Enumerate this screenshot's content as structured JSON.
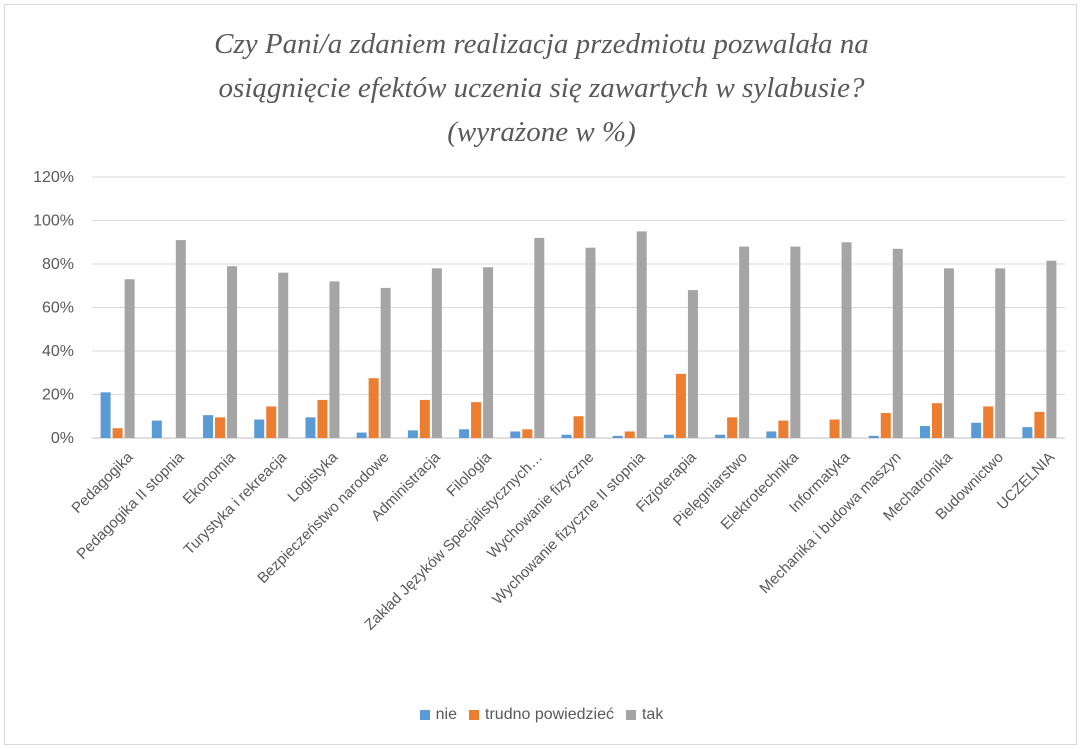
{
  "chart_data": {
    "type": "bar",
    "title_lines": [
      "Czy Pani/a zdaniem realizacja przedmiotu pozwalała na",
      "osiągnięcie efektów uczenia się zawartych w sylabusie?",
      "(wyrażone w %)"
    ],
    "xlabel": "",
    "ylabel": "",
    "ylim": [
      0,
      120
    ],
    "y_tick_labels": [
      "0%",
      "20%",
      "40%",
      "60%",
      "80%",
      "100%",
      "120%"
    ],
    "grid": true,
    "legend_position": "bottom",
    "categories": [
      "Pedagogika",
      "Pedagogika II stopnia",
      "Ekonomia",
      "Turystyka i rekreacja",
      "Logistyka",
      "Bezpieczeństwo narodowe",
      "Administracja",
      "Filologia",
      "Zakład Języków Specjalistycznych…",
      "Wychowanie fizyczne",
      "Wychowanie fizyczne II stopnia",
      "Fizjoterapia",
      "Pielęgniarstwo",
      "Elektrotechnika",
      "Informatyka",
      "Mechanika i budowa maszyn",
      "Mechatronika",
      "Budownictwo",
      "UCZELNIA"
    ],
    "series": [
      {
        "name": "nie",
        "color": "#5b9bd5",
        "values": [
          21,
          8,
          10.5,
          8.5,
          9.5,
          2.5,
          3.5,
          4,
          3,
          1.5,
          1,
          1.5,
          1.5,
          3,
          0,
          1,
          5.5,
          7,
          5
        ]
      },
      {
        "name": "trudno powiedzieć",
        "color": "#ed7d31",
        "values": [
          4.5,
          0,
          9.5,
          14.5,
          17.5,
          27.5,
          17.5,
          16.5,
          4,
          10,
          3,
          29.5,
          9.5,
          8,
          8.5,
          11.5,
          16,
          14.5,
          12
        ]
      },
      {
        "name": "tak",
        "color": "#a5a5a5",
        "values": [
          73,
          91,
          79,
          76,
          72,
          69,
          78,
          78.5,
          92,
          87.5,
          95,
          68,
          88,
          88,
          90,
          87,
          78,
          78,
          81.5
        ]
      }
    ]
  }
}
